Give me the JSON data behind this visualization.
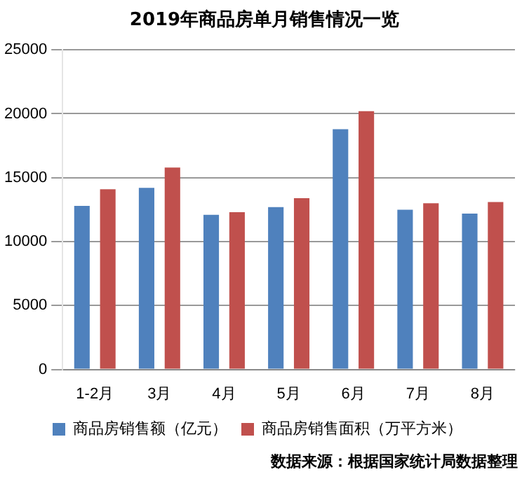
{
  "chart_data": {
    "type": "bar",
    "title": "2019年商品房单月销售情况一览",
    "categories": [
      "1-2月",
      "3月",
      "4月",
      "5月",
      "6月",
      "7月",
      "8月"
    ],
    "series": [
      {
        "name": "商品房销售额（亿元）",
        "color": "#4f81bd",
        "values": [
          12800,
          14200,
          12100,
          12700,
          18800,
          12500,
          12200
        ]
      },
      {
        "name": "商品房销售面积（万平方米）",
        "color": "#c0504d",
        "values": [
          14100,
          15800,
          12300,
          13400,
          20200,
          13000,
          13100
        ]
      }
    ],
    "ylim": [
      0,
      25000
    ],
    "yticks": [
      0,
      5000,
      10000,
      15000,
      20000,
      25000
    ],
    "grid": "y",
    "legend": "bottom",
    "annotations": [
      "数据来源：根据国家统计局数据整理"
    ]
  }
}
